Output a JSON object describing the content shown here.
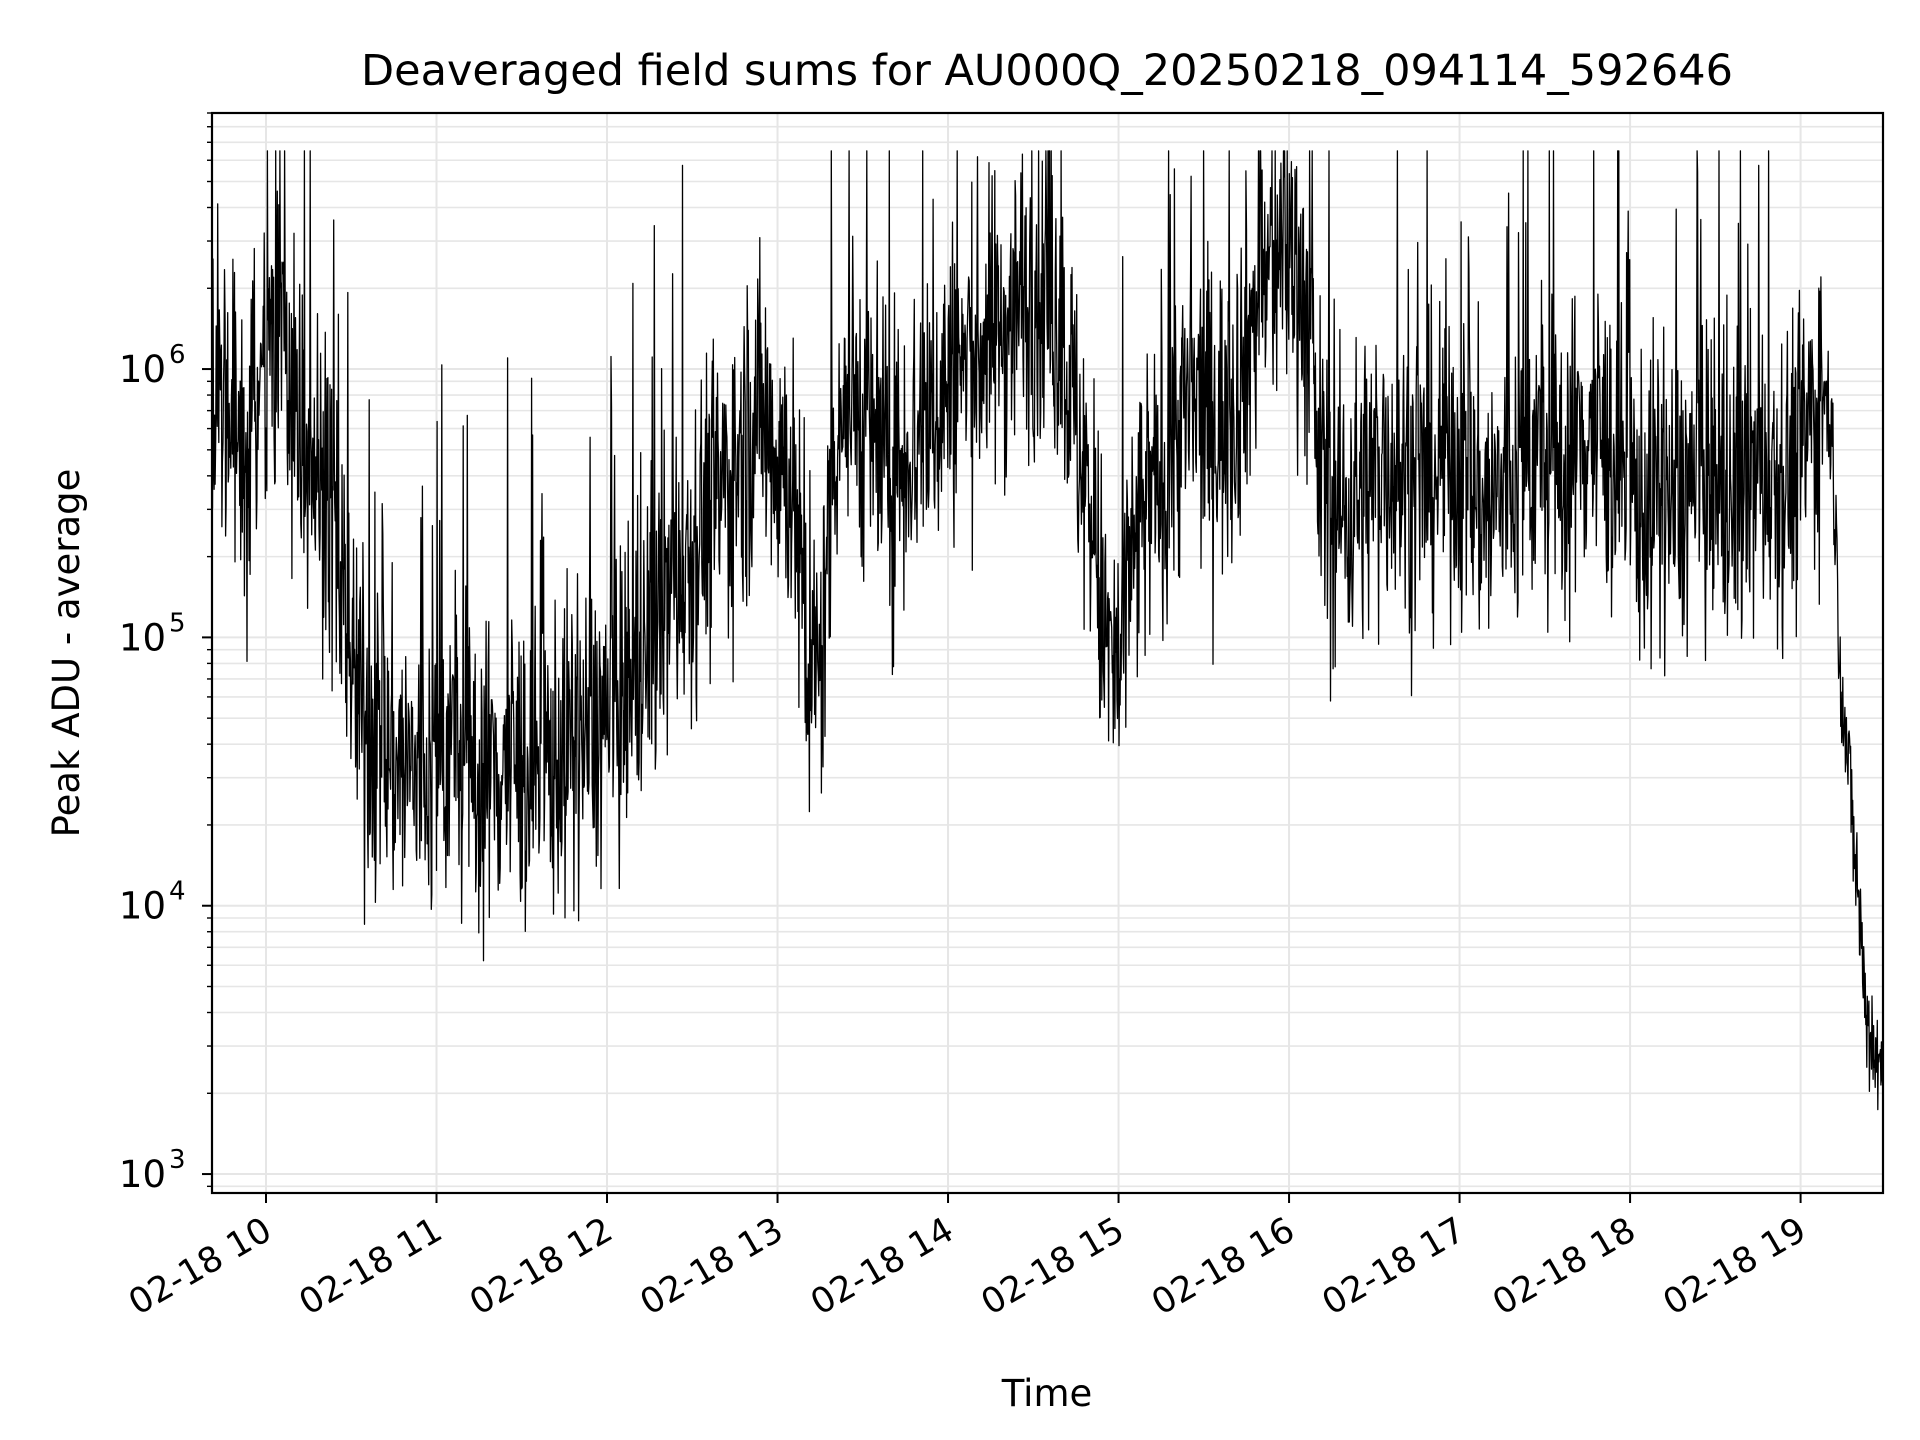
{
  "chart_data": {
    "type": "line",
    "title": "Deaveraged field sums for AU000Q_20250218_094114_592646",
    "xlabel": "Time",
    "ylabel": "Peak ADU - average",
    "x_ticks": [
      "02-18 10",
      "02-18 11",
      "02-18 12",
      "02-18 13",
      "02-18 14",
      "02-18 15",
      "02-18 16",
      "02-18 17",
      "02-18 18",
      "02-18 19"
    ],
    "y_ticks": [
      {
        "base": "10",
        "exp": "3",
        "value": 1000
      },
      {
        "base": "10",
        "exp": "4",
        "value": 10000
      },
      {
        "base": "10",
        "exp": "5",
        "value": 100000
      },
      {
        "base": "10",
        "exp": "6",
        "value": 1000000
      }
    ],
    "xlim": [
      "2025-02-18 09:41",
      "2025-02-18 19:29"
    ],
    "ylim": [
      850,
      9000000
    ],
    "y_scale": "log",
    "grid": true,
    "grid_minor": true,
    "line_color": "#000000",
    "grid_color": "#e6e6e6",
    "series": [
      {
        "x": [
          "2025-02-18 09:41",
          "2025-02-18 09:48",
          "2025-02-18 09:53",
          "2025-02-18 09:57",
          "2025-02-18 10:03",
          "2025-02-18 10:10",
          "2025-02-18 10:16",
          "2025-02-18 10:20",
          "2025-02-18 10:24",
          "2025-02-18 10:27",
          "2025-02-18 10:30",
          "2025-02-18 10:35",
          "2025-02-18 10:40",
          "2025-02-18 10:45",
          "2025-02-18 10:50",
          "2025-02-18 10:55",
          "2025-02-18 11:00",
          "2025-02-18 11:05",
          "2025-02-18 11:10",
          "2025-02-18 11:15",
          "2025-02-18 11:20",
          "2025-02-18 11:25",
          "2025-02-18 11:30",
          "2025-02-18 11:35",
          "2025-02-18 11:40",
          "2025-02-18 11:45",
          "2025-02-18 11:50",
          "2025-02-18 11:55",
          "2025-02-18 12:00",
          "2025-02-18 12:05",
          "2025-02-18 12:10",
          "2025-02-18 12:15",
          "2025-02-18 12:20",
          "2025-02-18 12:25",
          "2025-02-18 12:30",
          "2025-02-18 12:35",
          "2025-02-18 12:40",
          "2025-02-18 12:45",
          "2025-02-18 12:50",
          "2025-02-18 12:55",
          "2025-02-18 13:00",
          "2025-02-18 13:05",
          "2025-02-18 13:10",
          "2025-02-18 13:15",
          "2025-02-18 13:20",
          "2025-02-18 13:25",
          "2025-02-18 13:30",
          "2025-02-18 13:35",
          "2025-02-18 13:40",
          "2025-02-18 13:45",
          "2025-02-18 13:50",
          "2025-02-18 13:55",
          "2025-02-18 14:00",
          "2025-02-18 14:05",
          "2025-02-18 14:10",
          "2025-02-18 14:15",
          "2025-02-18 14:20",
          "2025-02-18 14:25",
          "2025-02-18 14:30",
          "2025-02-18 14:35",
          "2025-02-18 14:40",
          "2025-02-18 14:45",
          "2025-02-18 14:50",
          "2025-02-18 14:55",
          "2025-02-18 15:00",
          "2025-02-18 15:05",
          "2025-02-18 15:10",
          "2025-02-18 15:15",
          "2025-02-18 15:20",
          "2025-02-18 15:25",
          "2025-02-18 15:30",
          "2025-02-18 15:35",
          "2025-02-18 15:40",
          "2025-02-18 15:45",
          "2025-02-18 15:50",
          "2025-02-18 15:55",
          "2025-02-18 16:00",
          "2025-02-18 16:05",
          "2025-02-18 16:10",
          "2025-02-18 16:15",
          "2025-02-18 16:20",
          "2025-02-18 16:25",
          "2025-02-18 16:30",
          "2025-02-18 16:35",
          "2025-02-18 16:40",
          "2025-02-18 16:45",
          "2025-02-18 16:50",
          "2025-02-18 16:55",
          "2025-02-18 17:00",
          "2025-02-18 17:05",
          "2025-02-18 17:10",
          "2025-02-18 17:15",
          "2025-02-18 17:20",
          "2025-02-18 17:25",
          "2025-02-18 17:30",
          "2025-02-18 17:35",
          "2025-02-18 17:40",
          "2025-02-18 17:45",
          "2025-02-18 17:50",
          "2025-02-18 17:55",
          "2025-02-18 18:00",
          "2025-02-18 18:05",
          "2025-02-18 18:10",
          "2025-02-18 18:15",
          "2025-02-18 18:20",
          "2025-02-18 18:25",
          "2025-02-18 18:30",
          "2025-02-18 18:35",
          "2025-02-18 18:40",
          "2025-02-18 18:45",
          "2025-02-18 18:50",
          "2025-02-18 18:55",
          "2025-02-18 19:00",
          "2025-02-18 19:05",
          "2025-02-18 19:08",
          "2025-02-18 19:11",
          "2025-02-18 19:14",
          "2025-02-18 19:17",
          "2025-02-18 19:20",
          "2025-02-18 19:23",
          "2025-02-18 19:26",
          "2025-02-18 19:29"
        ],
        "y": [
          700000,
          600000,
          550000,
          700000,
          1500000,
          800000,
          500000,
          350000,
          250000,
          150000,
          80000,
          50000,
          40000,
          35000,
          32000,
          30000,
          35000,
          40000,
          35000,
          30000,
          32000,
          35000,
          33000,
          30000,
          35000,
          38000,
          40000,
          45000,
          50000,
          55000,
          70000,
          100000,
          130000,
          180000,
          220000,
          300000,
          350000,
          420000,
          600000,
          700000,
          500000,
          400000,
          80000,
          70000,
          600000,
          800000,
          700000,
          500000,
          400000,
          500000,
          600000,
          700000,
          900000,
          1000000,
          1200000,
          1300000,
          1500000,
          1800000,
          2000000,
          1800000,
          1500000,
          600000,
          300000,
          100000,
          70000,
          200000,
          300000,
          400000,
          600000,
          700000,
          700000,
          650000,
          700000,
          1200000,
          2000000,
          2500000,
          3000000,
          2000000,
          500000,
          300000,
          300000,
          350000,
          400000,
          500000,
          400000,
          350000,
          400000,
          500000,
          450000,
          350000,
          300000,
          350000,
          400000,
          500000,
          450000,
          400000,
          500000,
          600000,
          550000,
          450000,
          350000,
          300000,
          350000,
          300000,
          350000,
          400000,
          350000,
          300000,
          350000,
          400000,
          450000,
          400000,
          500000,
          700000,
          900000,
          600000,
          80000,
          30000,
          12000,
          4000,
          3000,
          2200
        ]
      }
    ]
  }
}
